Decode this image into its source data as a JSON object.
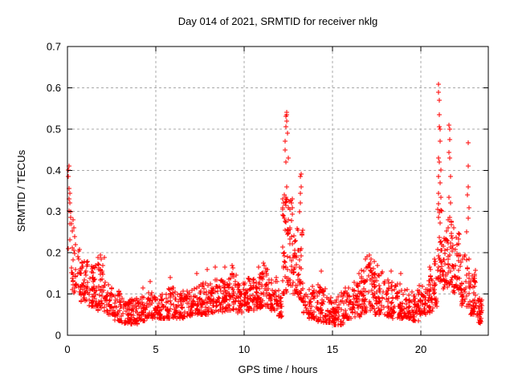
{
  "chart_data": {
    "type": "scatter",
    "title": "Day 014 of 2021, SRMTID for receiver nklg",
    "xlabel": "GPS time / hours",
    "ylabel": "SRMTID / TECUs",
    "xlim": [
      0,
      23.818
    ],
    "ylim": [
      0,
      0.7
    ],
    "xtick_values": [
      0,
      5,
      10,
      15,
      20
    ],
    "xtick_labels": [
      "0",
      "5",
      "10",
      "15",
      "20"
    ],
    "ytick_values": [
      0,
      0.1,
      0.2,
      0.3,
      0.4,
      0.5,
      0.6,
      0.7
    ],
    "ytick_labels": [
      "0",
      "0.1",
      "0.2",
      "0.3",
      "0.4",
      "0.5",
      "0.6",
      "0.7"
    ],
    "grid": true,
    "grid_color": "#a8a8a8",
    "axis_color": "#000000",
    "marker": {
      "symbol": "plus",
      "color": "#ff0000",
      "size": 7
    },
    "seed": 20210114,
    "band_segments": [
      {
        "t0": 0.2,
        "t1": 0.7,
        "n": 30,
        "y_min": 0.1,
        "y_max": 0.21
      },
      {
        "t0": 0.7,
        "t1": 1.2,
        "n": 45,
        "y_min": 0.08,
        "y_max": 0.18
      },
      {
        "t0": 1.2,
        "t1": 1.7,
        "n": 45,
        "y_min": 0.07,
        "y_max": 0.17
      },
      {
        "t0": 1.7,
        "t1": 2.1,
        "n": 40,
        "y_min": 0.06,
        "y_max": 0.19
      },
      {
        "t0": 2.1,
        "t1": 2.6,
        "n": 40,
        "y_min": 0.05,
        "y_max": 0.13
      },
      {
        "t0": 2.6,
        "t1": 3.1,
        "n": 40,
        "y_min": 0.035,
        "y_max": 0.11
      },
      {
        "t0": 3.1,
        "t1": 3.6,
        "n": 42,
        "y_min": 0.028,
        "y_max": 0.085
      },
      {
        "t0": 3.6,
        "t1": 4.1,
        "n": 42,
        "y_min": 0.028,
        "y_max": 0.09
      },
      {
        "t0": 4.1,
        "t1": 4.6,
        "n": 40,
        "y_min": 0.035,
        "y_max": 0.1
      },
      {
        "t0": 4.6,
        "t1": 5.1,
        "n": 40,
        "y_min": 0.04,
        "y_max": 0.105
      },
      {
        "t0": 5.1,
        "t1": 5.6,
        "n": 40,
        "y_min": 0.04,
        "y_max": 0.1
      },
      {
        "t0": 5.6,
        "t1": 6.1,
        "n": 40,
        "y_min": 0.04,
        "y_max": 0.115
      },
      {
        "t0": 6.1,
        "t1": 6.6,
        "n": 40,
        "y_min": 0.04,
        "y_max": 0.11
      },
      {
        "t0": 6.6,
        "t1": 7.1,
        "n": 40,
        "y_min": 0.045,
        "y_max": 0.12
      },
      {
        "t0": 7.1,
        "t1": 7.6,
        "n": 40,
        "y_min": 0.05,
        "y_max": 0.125
      },
      {
        "t0": 7.6,
        "t1": 8.1,
        "n": 42,
        "y_min": 0.05,
        "y_max": 0.135
      },
      {
        "t0": 8.1,
        "t1": 8.6,
        "n": 44,
        "y_min": 0.055,
        "y_max": 0.14
      },
      {
        "t0": 8.6,
        "t1": 9.1,
        "n": 44,
        "y_min": 0.055,
        "y_max": 0.14
      },
      {
        "t0": 9.1,
        "t1": 9.6,
        "n": 44,
        "y_min": 0.06,
        "y_max": 0.15
      },
      {
        "t0": 9.6,
        "t1": 10.1,
        "n": 44,
        "y_min": 0.055,
        "y_max": 0.13
      },
      {
        "t0": 10.1,
        "t1": 10.6,
        "n": 44,
        "y_min": 0.06,
        "y_max": 0.14
      },
      {
        "t0": 10.6,
        "t1": 11.0,
        "n": 40,
        "y_min": 0.065,
        "y_max": 0.15
      },
      {
        "t0": 11.0,
        "t1": 11.4,
        "n": 40,
        "y_min": 0.07,
        "y_max": 0.165
      },
      {
        "t0": 11.4,
        "t1": 11.9,
        "n": 42,
        "y_min": 0.06,
        "y_max": 0.14
      },
      {
        "t0": 11.9,
        "t1": 12.15,
        "n": 22,
        "y_min": 0.045,
        "y_max": 0.12
      },
      {
        "t0": 12.15,
        "t1": 12.45,
        "n": 40,
        "y_min": 0.1,
        "y_max": 0.36
      },
      {
        "t0": 12.45,
        "t1": 12.75,
        "n": 36,
        "y_min": 0.12,
        "y_max": 0.34
      },
      {
        "t0": 12.75,
        "t1": 13.05,
        "n": 32,
        "y_min": 0.1,
        "y_max": 0.3
      },
      {
        "t0": 13.05,
        "t1": 13.35,
        "n": 30,
        "y_min": 0.08,
        "y_max": 0.27
      },
      {
        "t0": 13.35,
        "t1": 13.6,
        "n": 14,
        "y_min": 0.05,
        "y_max": 0.1
      },
      {
        "t0": 13.6,
        "t1": 14.1,
        "n": 42,
        "y_min": 0.04,
        "y_max": 0.12
      },
      {
        "t0": 14.1,
        "t1": 14.6,
        "n": 44,
        "y_min": 0.03,
        "y_max": 0.13
      },
      {
        "t0": 14.6,
        "t1": 15.1,
        "n": 42,
        "y_min": 0.03,
        "y_max": 0.11
      },
      {
        "t0": 15.1,
        "t1": 15.6,
        "n": 44,
        "y_min": 0.025,
        "y_max": 0.105
      },
      {
        "t0": 15.6,
        "t1": 16.1,
        "n": 42,
        "y_min": 0.04,
        "y_max": 0.115
      },
      {
        "t0": 16.1,
        "t1": 16.6,
        "n": 42,
        "y_min": 0.045,
        "y_max": 0.13
      },
      {
        "t0": 16.6,
        "t1": 17.0,
        "n": 40,
        "y_min": 0.05,
        "y_max": 0.17
      },
      {
        "t0": 17.0,
        "t1": 17.4,
        "n": 40,
        "y_min": 0.06,
        "y_max": 0.18
      },
      {
        "t0": 17.4,
        "t1": 17.9,
        "n": 42,
        "y_min": 0.05,
        "y_max": 0.155
      },
      {
        "t0": 17.9,
        "t1": 18.4,
        "n": 42,
        "y_min": 0.045,
        "y_max": 0.135
      },
      {
        "t0": 18.4,
        "t1": 18.9,
        "n": 42,
        "y_min": 0.04,
        "y_max": 0.125
      },
      {
        "t0": 18.9,
        "t1": 19.4,
        "n": 42,
        "y_min": 0.04,
        "y_max": 0.11
      },
      {
        "t0": 19.4,
        "t1": 19.9,
        "n": 42,
        "y_min": 0.035,
        "y_max": 0.11
      },
      {
        "t0": 19.9,
        "t1": 20.3,
        "n": 36,
        "y_min": 0.05,
        "y_max": 0.125
      },
      {
        "t0": 20.3,
        "t1": 20.7,
        "n": 36,
        "y_min": 0.055,
        "y_max": 0.15
      },
      {
        "t0": 20.7,
        "t1": 20.95,
        "n": 22,
        "y_min": 0.07,
        "y_max": 0.19
      },
      {
        "t0": 20.95,
        "t1": 21.2,
        "n": 34,
        "y_min": 0.13,
        "y_max": 0.32
      },
      {
        "t0": 21.2,
        "t1": 21.5,
        "n": 30,
        "y_min": 0.11,
        "y_max": 0.26
      },
      {
        "t0": 21.5,
        "t1": 21.8,
        "n": 32,
        "y_min": 0.12,
        "y_max": 0.3
      },
      {
        "t0": 21.8,
        "t1": 22.3,
        "n": 44,
        "y_min": 0.1,
        "y_max": 0.26
      },
      {
        "t0": 22.3,
        "t1": 22.8,
        "n": 40,
        "y_min": 0.07,
        "y_max": 0.2
      },
      {
        "t0": 22.8,
        "t1": 23.15,
        "n": 40,
        "y_min": 0.05,
        "y_max": 0.16
      },
      {
        "t0": 23.15,
        "t1": 23.45,
        "n": 30,
        "y_min": 0.03,
        "y_max": 0.09
      }
    ],
    "peak_points": [
      [
        0.03,
        0.4
      ],
      [
        0.08,
        0.41
      ],
      [
        0.05,
        0.385
      ],
      [
        0.1,
        0.355
      ],
      [
        0.12,
        0.345
      ],
      [
        0.07,
        0.33
      ],
      [
        0.15,
        0.32
      ],
      [
        0.1,
        0.302
      ],
      [
        0.18,
        0.285
      ],
      [
        0.13,
        0.27
      ],
      [
        0.2,
        0.3
      ],
      [
        0.22,
        0.27
      ],
      [
        0.25,
        0.252
      ],
      [
        0.3,
        0.28
      ],
      [
        0.35,
        0.26
      ],
      [
        0.4,
        0.24
      ],
      [
        0.45,
        0.22
      ],
      [
        0.05,
        0.21
      ],
      [
        0.15,
        0.232
      ],
      [
        0.28,
        0.212
      ],
      [
        1.85,
        0.195
      ],
      [
        1.9,
        0.185
      ],
      [
        4.25,
        0.115
      ],
      [
        4.7,
        0.13
      ],
      [
        5.8,
        0.14
      ],
      [
        7.3,
        0.15
      ],
      [
        7.9,
        0.16
      ],
      [
        8.35,
        0.165
      ],
      [
        8.9,
        0.165
      ],
      [
        9.3,
        0.17
      ],
      [
        9.35,
        0.163
      ],
      [
        10.8,
        0.165
      ],
      [
        11.1,
        0.175
      ],
      [
        11.15,
        0.17
      ],
      [
        12.32,
        0.45
      ],
      [
        12.34,
        0.47
      ],
      [
        12.36,
        0.505
      ],
      [
        12.38,
        0.53
      ],
      [
        12.4,
        0.54
      ],
      [
        12.41,
        0.534
      ],
      [
        12.43,
        0.52
      ],
      [
        12.46,
        0.49
      ],
      [
        12.5,
        0.43
      ],
      [
        12.37,
        0.42
      ],
      [
        13.15,
        0.3
      ],
      [
        13.18,
        0.32
      ],
      [
        13.2,
        0.345
      ],
      [
        13.22,
        0.36
      ],
      [
        13.19,
        0.385
      ],
      [
        13.24,
        0.39
      ],
      [
        14.35,
        0.155
      ],
      [
        16.5,
        0.15
      ],
      [
        16.85,
        0.185
      ],
      [
        16.95,
        0.19
      ],
      [
        17.1,
        0.195
      ],
      [
        17.2,
        0.185
      ],
      [
        17.55,
        0.17
      ],
      [
        18.3,
        0.155
      ],
      [
        18.85,
        0.15
      ],
      [
        20.5,
        0.165
      ],
      [
        20.55,
        0.16
      ],
      [
        21.0,
        0.608
      ],
      [
        21.02,
        0.589
      ],
      [
        21.05,
        0.57
      ],
      [
        21.03,
        0.535
      ],
      [
        21.06,
        0.505
      ],
      [
        21.1,
        0.5
      ],
      [
        21.08,
        0.47
      ],
      [
        21.0,
        0.43
      ],
      [
        21.05,
        0.42
      ],
      [
        21.12,
        0.4
      ],
      [
        21.02,
        0.385
      ],
      [
        21.09,
        0.37
      ],
      [
        21.0,
        0.345
      ],
      [
        21.15,
        0.335
      ],
      [
        21.6,
        0.51
      ],
      [
        21.62,
        0.5
      ],
      [
        21.65,
        0.475
      ],
      [
        21.58,
        0.443
      ],
      [
        21.63,
        0.43
      ],
      [
        21.68,
        0.385
      ],
      [
        21.6,
        0.335
      ],
      [
        21.7,
        0.32
      ],
      [
        22.68,
        0.466
      ],
      [
        22.66,
        0.41
      ],
      [
        22.7,
        0.36
      ],
      [
        22.65,
        0.34
      ],
      [
        22.72,
        0.31
      ],
      [
        22.67,
        0.284
      ],
      [
        22.6,
        0.25
      ],
      [
        23.3,
        0.07
      ],
      [
        23.35,
        0.05
      ],
      [
        23.4,
        0.04
      ],
      [
        23.38,
        0.03
      ]
    ]
  }
}
